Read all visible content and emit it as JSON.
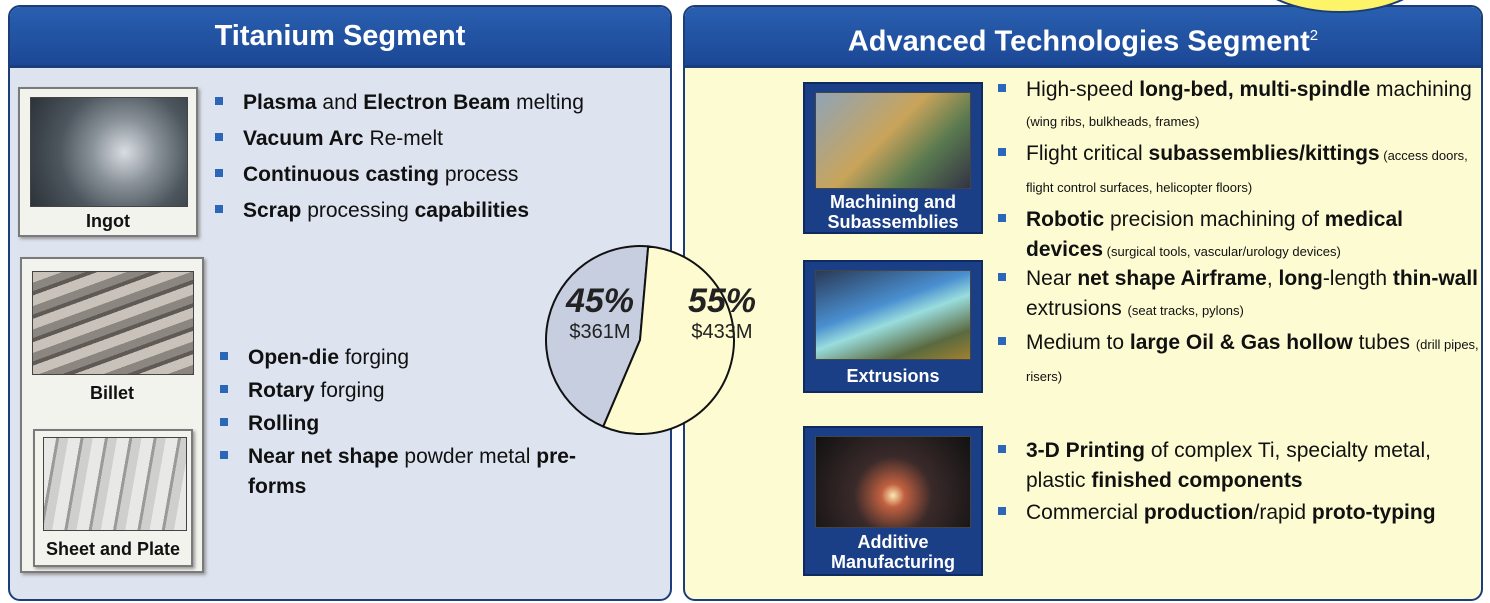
{
  "left": {
    "title": "Titanium Segment",
    "images": [
      "Ingot",
      "Billet",
      "Sheet and Plate"
    ],
    "bullet_groups": [
      [
        [
          {
            "text": "Plasma",
            "style": "bold"
          },
          {
            "text": " and ",
            "style": "regular"
          },
          {
            "text": "Electron Beam",
            "style": "bold"
          },
          {
            "text": " melting",
            "style": "regular"
          }
        ],
        [
          {
            "text": "Vacuum Arc",
            "style": "bold"
          },
          {
            "text": " Re-melt",
            "style": "regular"
          }
        ],
        [
          {
            "text": "Continuous casting",
            "style": "bold"
          },
          {
            "text": " process",
            "style": "regular"
          }
        ],
        [
          {
            "text": "Scrap",
            "style": "bold"
          },
          {
            "text": " processing ",
            "style": "regular"
          },
          {
            "text": "capabilities",
            "style": "bold"
          }
        ]
      ],
      [
        [
          {
            "text": "Open-die",
            "style": "bold"
          },
          {
            "text": " forging",
            "style": "regular"
          }
        ],
        [
          {
            "text": "Rotary",
            "style": "bold"
          },
          {
            "text": " forging",
            "style": "regular"
          }
        ],
        [
          {
            "text": "Rolling",
            "style": "bold"
          }
        ],
        [
          {
            "text": "Near net shape",
            "style": "bold"
          },
          {
            "text": " powder metal ",
            "style": "regular"
          },
          {
            "text": "pre-forms",
            "style": "bold"
          }
        ]
      ]
    ]
  },
  "right": {
    "title": "Advanced Technologies Segment",
    "title_note": "2",
    "items": [
      {
        "label": "Machining and Subassemblies",
        "bullets": [
          [
            {
              "text": "High-speed ",
              "style": "regular"
            },
            {
              "text": "long-bed, multi-spindle",
              "style": "bold"
            },
            {
              "text": " machining ",
              "style": "regular"
            },
            {
              "text": "(wing ribs, bulkheads, frames)",
              "style": "small"
            }
          ],
          [
            {
              "text": "Flight critical ",
              "style": "regular"
            },
            {
              "text": "subassemblies/kittings",
              "style": "bold"
            },
            {
              "text": " (access doors, flight control surfaces, helicopter floors)",
              "style": "small"
            }
          ],
          [
            {
              "text": "Robotic",
              "style": "bold"
            },
            {
              "text": " precision machining of ",
              "style": "regular"
            },
            {
              "text": "medical devices",
              "style": "bold"
            },
            {
              "text": " (surgical tools, vascular/urology devices)",
              "style": "small"
            }
          ]
        ]
      },
      {
        "label": "Extrusions",
        "bullets": [
          [
            {
              "text": "Near ",
              "style": "regular"
            },
            {
              "text": "net shape Airframe",
              "style": "bold"
            },
            {
              "text": ", ",
              "style": "regular"
            },
            {
              "text": "long",
              "style": "bold"
            },
            {
              "text": "-length ",
              "style": "regular"
            },
            {
              "text": "thin-wall",
              "style": "bold"
            },
            {
              "text": " extrusions ",
              "style": "regular"
            },
            {
              "text": "(seat tracks, pylons)",
              "style": "small"
            }
          ],
          [
            {
              "text": "Medium to ",
              "style": "regular"
            },
            {
              "text": "large Oil & Gas hollow",
              "style": "bold"
            },
            {
              "text": " tubes ",
              "style": "regular"
            },
            {
              "text": "(drill pipes, risers)",
              "style": "small"
            }
          ]
        ]
      },
      {
        "label": "Additive Manufacturing",
        "bullets": [
          [
            {
              "text": "3-D Printing",
              "style": "bold"
            },
            {
              "text": " of complex Ti, specialty metal, plastic ",
              "style": "regular"
            },
            {
              "text": "finished components",
              "style": "bold"
            }
          ],
          [
            {
              "text": "Commercial ",
              "style": "regular"
            },
            {
              "text": "production",
              "style": "bold"
            },
            {
              "text": "/rapid ",
              "style": "regular"
            },
            {
              "text": "proto-typing",
              "style": "bold"
            }
          ]
        ]
      }
    ]
  },
  "pie": {
    "type": "pie",
    "values": [
      45,
      55
    ],
    "value_labels": [
      "45%",
      "55%"
    ],
    "sublabels": [
      "$361M",
      "$433M"
    ],
    "colors": [
      "#c6cee0",
      "#fdfbcf"
    ]
  }
}
